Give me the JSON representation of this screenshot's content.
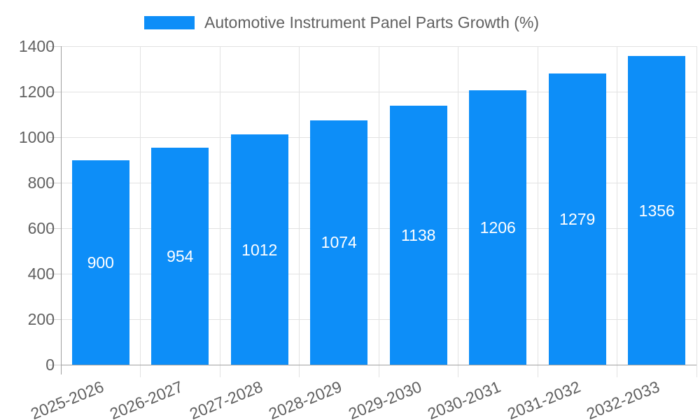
{
  "chart_data": {
    "type": "bar",
    "title": "Automotive Instrument Panel Parts Growth (%)",
    "categories": [
      "2025-2026",
      "2026-2027",
      "2027-2028",
      "2028-2029",
      "2029-2030",
      "2030-2031",
      "2031-2032",
      "2032-2033"
    ],
    "series": [
      {
        "name": "Automotive Instrument Panel Parts Growth (%)",
        "values": [
          900,
          954,
          1012,
          1074,
          1138,
          1206,
          1279,
          1356
        ]
      }
    ],
    "value_labels": [
      "900",
      "954",
      "1012",
      "1074",
      "1138",
      "1206",
      "1279",
      "1356"
    ],
    "xlabel": "",
    "ylabel": "",
    "ylim": [
      0,
      1400
    ],
    "yticks": [
      0,
      200,
      400,
      600,
      800,
      1000,
      1200,
      1400
    ],
    "grid": true,
    "legend_position": "top",
    "colors": {
      "bar": "#0d8ef8",
      "value_label": "#ffffff",
      "axis_text": "#616161",
      "grid_line": "#e2e2e2",
      "axis_line": "#a0a0a0",
      "tick_mark": "#cfcfcf",
      "background": "#ffffff"
    }
  }
}
